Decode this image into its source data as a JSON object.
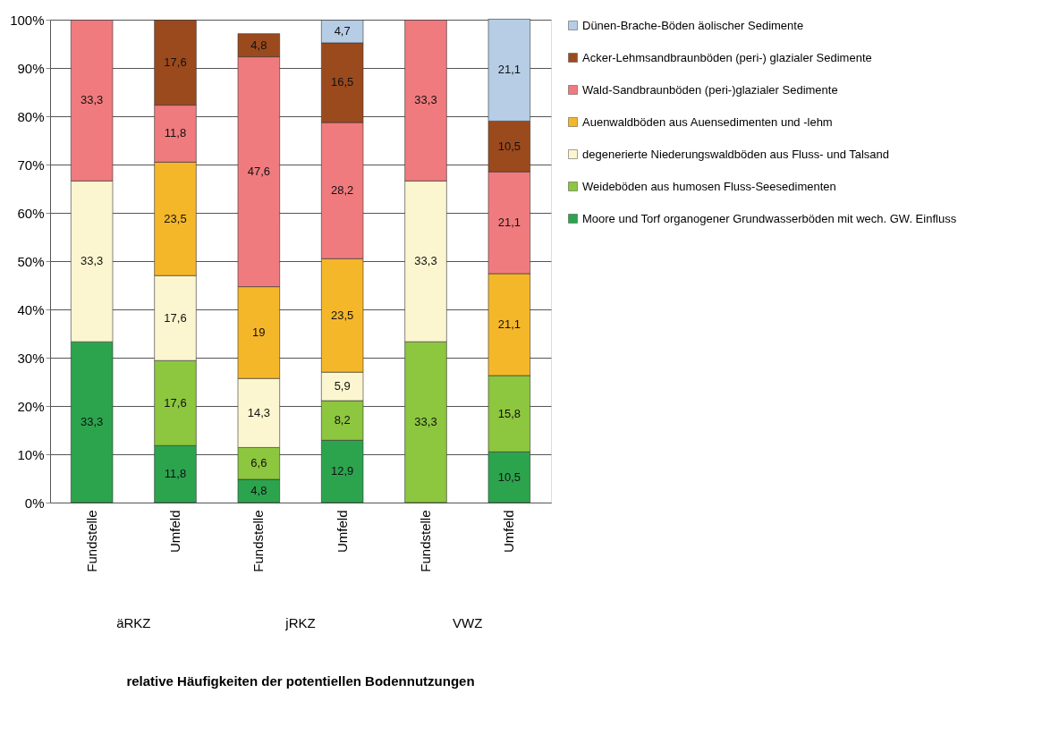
{
  "chart_data": {
    "type": "bar",
    "stacked": true,
    "title": "relative Häufigkeiten der potentiellen Bodennutzungen",
    "categories": [
      "Fundstelle",
      "Umfeld",
      "Fundstelle",
      "Umfeld",
      "Fundstelle",
      "Umfeld"
    ],
    "series": [
      {
        "name": "Moore und Torf organogener Grundwasserböden mit wech. GW. Einfluss",
        "color": "#2ca44e",
        "values": [
          33.3,
          11.8,
          4.8,
          12.9,
          null,
          10.5
        ],
        "value_labels": [
          "33,3",
          "11,8",
          "4,8",
          "12,9",
          null,
          "10,5"
        ]
      },
      {
        "name": "Weideböden aus humosen Fluss-Seesedimenten",
        "color": "#8dc63f",
        "values": [
          null,
          17.6,
          6.6,
          8.2,
          33.3,
          15.8
        ],
        "value_labels": [
          null,
          "17,6",
          "6,6",
          "8,2",
          "33,3",
          "15,8"
        ]
      },
      {
        "name": "degenerierte Niederungswaldböden aus Fluss- und Talsand",
        "color": "#fbf6cf",
        "values": [
          33.3,
          17.6,
          14.3,
          5.9,
          33.3,
          null
        ],
        "value_labels": [
          "33,3",
          "17,6",
          "14,3",
          "5,9",
          "33,3",
          null
        ]
      },
      {
        "name": "Auenwaldböden aus Auensedimenten und -lehm",
        "color": "#f5b72a",
        "values": [
          null,
          23.5,
          19,
          23.5,
          null,
          21.1
        ],
        "value_labels": [
          null,
          "23,5",
          "19",
          "23,5",
          null,
          "21,1"
        ]
      },
      {
        "name": "Wald-Sandbraunböden (peri-)glazialer Sedimente",
        "color": "#f07b7e",
        "values": [
          33.3,
          11.8,
          47.6,
          28.2,
          33.3,
          21.1
        ],
        "value_labels": [
          "33,3",
          "11,8",
          "47,6",
          "28,2",
          "33,3",
          "21,1"
        ]
      },
      {
        "name": "Acker-Lehmsandbraunböden (peri-) glazialer Sedimente",
        "color": "#9b4a1e",
        "values": [
          null,
          17.6,
          4.8,
          16.5,
          null,
          10.5
        ],
        "value_labels": [
          null,
          "17,6",
          "4,8",
          "16,5",
          null,
          "10,5"
        ]
      },
      {
        "name": "Dünen-Brache-Böden äolischer Sedimente",
        "color": "#b7cde6",
        "values": [
          null,
          null,
          null,
          4.7,
          null,
          21.1
        ],
        "value_labels": [
          null,
          null,
          null,
          "4,7",
          null,
          "21,1"
        ]
      }
    ],
    "annotations": [
      "äRKZ",
      "jRKZ",
      "VWZ"
    ],
    "ylim": [
      0,
      100
    ],
    "yticks": [
      {
        "value": 0,
        "label": "0%"
      },
      {
        "value": 10,
        "label": "10%"
      },
      {
        "value": 20,
        "label": "20%"
      },
      {
        "value": 30,
        "label": "30%"
      },
      {
        "value": 40,
        "label": "40%"
      },
      {
        "value": 50,
        "label": "50%"
      },
      {
        "value": 60,
        "label": "60%"
      },
      {
        "value": 70,
        "label": "70%"
      },
      {
        "value": 80,
        "label": "80%"
      },
      {
        "value": 90,
        "label": "90%"
      },
      {
        "value": 100,
        "label": "100%"
      }
    ],
    "grid": "y",
    "legend": "right"
  }
}
